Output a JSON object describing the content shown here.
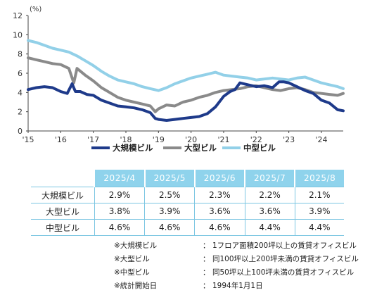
{
  "chart_data": {
    "type": "line",
    "unit": "(%)",
    "ylim": [
      0,
      12
    ],
    "yticks": [
      0,
      2,
      4,
      6,
      8,
      10,
      12
    ],
    "xlim": [
      2015,
      2024.67
    ],
    "xticks": [
      "'15",
      "'16",
      "'17",
      "'18",
      "'19",
      "'20",
      "'21",
      "'22",
      "'23",
      "'24"
    ],
    "grid": false,
    "legend_position": "bottom",
    "series": [
      {
        "name": "大規模ビル",
        "color": "#1e3a8a",
        "x": [
          2015.0,
          2015.25,
          2015.5,
          2015.75,
          2016.0,
          2016.2,
          2016.35,
          2016.45,
          2016.6,
          2016.8,
          2017.0,
          2017.25,
          2017.5,
          2017.75,
          2018.0,
          2018.25,
          2018.5,
          2018.75,
          2018.9,
          2019.0,
          2019.25,
          2019.5,
          2019.75,
          2020.0,
          2020.25,
          2020.5,
          2020.75,
          2021.0,
          2021.2,
          2021.35,
          2021.5,
          2021.75,
          2022.0,
          2022.25,
          2022.5,
          2022.7,
          2022.85,
          2023.0,
          2023.25,
          2023.5,
          2023.75,
          2024.0,
          2024.25,
          2024.5,
          2024.67
        ],
        "y": [
          4.3,
          4.5,
          4.6,
          4.5,
          4.1,
          3.9,
          4.9,
          4.1,
          4.1,
          3.8,
          3.7,
          3.2,
          2.9,
          2.6,
          2.5,
          2.4,
          2.2,
          1.9,
          1.3,
          1.2,
          1.1,
          1.2,
          1.3,
          1.4,
          1.5,
          1.8,
          2.5,
          3.6,
          4.1,
          4.3,
          5.0,
          4.8,
          4.6,
          4.7,
          4.5,
          5.1,
          5.1,
          5.0,
          4.6,
          4.2,
          3.9,
          3.2,
          2.9,
          2.2,
          2.1
        ]
      },
      {
        "name": "大型ビル",
        "color": "#8a8a8a",
        "x": [
          2015.0,
          2015.25,
          2015.5,
          2015.75,
          2016.0,
          2016.25,
          2016.4,
          2016.5,
          2016.75,
          2017.0,
          2017.25,
          2017.5,
          2017.75,
          2018.0,
          2018.25,
          2018.5,
          2018.75,
          2018.9,
          2019.0,
          2019.25,
          2019.5,
          2019.75,
          2020.0,
          2020.25,
          2020.5,
          2020.75,
          2021.0,
          2021.25,
          2021.5,
          2021.75,
          2022.0,
          2022.25,
          2022.5,
          2022.75,
          2023.0,
          2023.25,
          2023.5,
          2023.75,
          2024.0,
          2024.25,
          2024.5,
          2024.67
        ],
        "y": [
          7.6,
          7.4,
          7.2,
          7.0,
          6.9,
          6.5,
          5.0,
          6.5,
          5.8,
          5.2,
          4.5,
          4.0,
          3.5,
          3.2,
          3.0,
          2.8,
          2.6,
          2.0,
          2.3,
          2.7,
          2.6,
          3.0,
          3.2,
          3.5,
          3.7,
          4.0,
          4.2,
          4.3,
          4.4,
          4.6,
          4.7,
          4.5,
          4.3,
          4.2,
          4.4,
          4.5,
          4.3,
          4.0,
          3.9,
          3.8,
          3.7,
          3.9
        ]
      },
      {
        "name": "中型ビル",
        "color": "#92d0e8",
        "x": [
          2015.0,
          2015.25,
          2015.5,
          2015.75,
          2016.0,
          2016.25,
          2016.5,
          2016.75,
          2017.0,
          2017.25,
          2017.5,
          2017.75,
          2018.0,
          2018.25,
          2018.5,
          2018.75,
          2019.0,
          2019.25,
          2019.5,
          2019.75,
          2020.0,
          2020.25,
          2020.5,
          2020.75,
          2021.0,
          2021.25,
          2021.5,
          2021.75,
          2022.0,
          2022.25,
          2022.5,
          2022.75,
          2023.0,
          2023.25,
          2023.5,
          2023.75,
          2024.0,
          2024.25,
          2024.5,
          2024.67
        ],
        "y": [
          9.4,
          9.2,
          8.9,
          8.6,
          8.4,
          8.2,
          7.8,
          7.3,
          6.8,
          6.2,
          5.7,
          5.3,
          5.1,
          4.9,
          4.6,
          4.4,
          4.2,
          4.5,
          4.9,
          5.2,
          5.5,
          5.7,
          5.9,
          6.1,
          5.8,
          5.7,
          5.6,
          5.5,
          5.3,
          5.4,
          5.5,
          5.4,
          5.3,
          5.5,
          5.6,
          5.3,
          5.0,
          4.8,
          4.6,
          4.4
        ]
      }
    ]
  },
  "table": {
    "headers": [
      "2025/4",
      "2025/5",
      "2025/6",
      "2025/7",
      "2025/8"
    ],
    "rows": [
      {
        "label": "大規模ビル",
        "values": [
          "2.9%",
          "2.5%",
          "2.3%",
          "2.2%",
          "2.1%"
        ]
      },
      {
        "label": "大型ビル",
        "values": [
          "3.8%",
          "3.9%",
          "3.6%",
          "3.6%",
          "3.9%"
        ]
      },
      {
        "label": "中型ビル",
        "values": [
          "4.6%",
          "4.6%",
          "4.6%",
          "4.4%",
          "4.4%"
        ]
      }
    ]
  },
  "notes": [
    {
      "label": "※大規模ビル",
      "text": "1フロア面積200坪以上の賃貸オフィスビル"
    },
    {
      "label": "※大型ビル",
      "text": "同100坪以上200坪未満の賃貸オフィスビル"
    },
    {
      "label": "※中型ビル",
      "text": "同50坪以上100坪未満の賃貸オフィスビル"
    },
    {
      "label": "※統計開始日",
      "text": "1994年1月1日"
    }
  ]
}
